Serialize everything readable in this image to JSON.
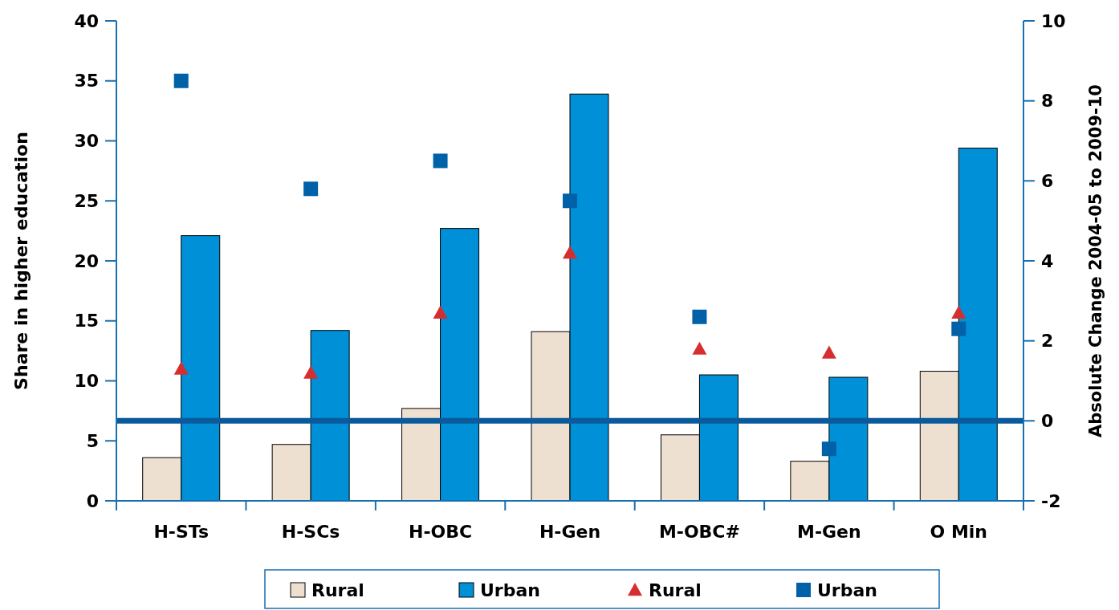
{
  "chart_data": {
    "type": "bar",
    "ylabel": "Share in higher education",
    "y2label": "Absolute Change 2004-05 to 2009-10",
    "categories": [
      "H-STs",
      "H-SCs",
      "H-OBC",
      "H-Gen",
      "M-OBC#",
      "M-Gen",
      "O Min"
    ],
    "series": [
      {
        "name": "Rural",
        "color": "#ede0d0",
        "values": [
          3.6,
          4.7,
          7.7,
          14.1,
          5.5,
          3.3,
          10.8
        ]
      },
      {
        "name": "Urban",
        "color": "#0090d8",
        "values": [
          22.1,
          14.2,
          22.7,
          33.9,
          10.5,
          10.3,
          29.4
        ]
      },
      {
        "name": "Rural",
        "type": "scatter",
        "axis": "y2",
        "marker": "triangle",
        "color": "#d62e2e",
        "values": [
          1.3,
          1.2,
          2.7,
          4.2,
          1.8,
          1.7,
          2.7
        ]
      },
      {
        "name": "Urban",
        "type": "scatter",
        "axis": "y2",
        "marker": "square",
        "color": "#0060a8",
        "values": [
          8.5,
          5.8,
          6.5,
          5.5,
          2.6,
          -0.7,
          2.3
        ]
      }
    ],
    "ylim": [
      0,
      40
    ],
    "yticks": [
      0,
      5,
      10,
      15,
      20,
      25,
      30,
      35,
      40
    ],
    "y2lim": [
      -2,
      10
    ],
    "y2ticks": [
      -2,
      0,
      2,
      4,
      6,
      8,
      10
    ],
    "ref_lines": [
      {
        "axis": "y2",
        "value": 0,
        "color": "#0a5a9c"
      }
    ],
    "grid": false,
    "legend": "bottom"
  }
}
